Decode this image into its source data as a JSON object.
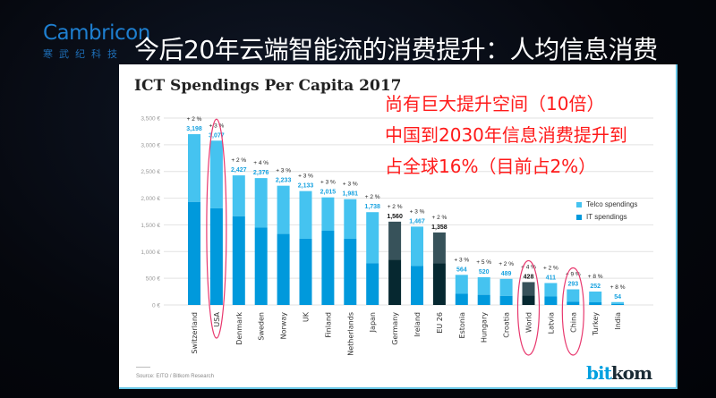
{
  "logo": {
    "en": "Cambricon",
    "cn": "寒武纪科技"
  },
  "title": "今后20年云端智能流的消费提升：人均信息消费",
  "annotations": [
    "尚有巨大提升空间（10倍）",
    "中国到2030年信息消费提升到",
    "占全球16%（目前占2%）"
  ],
  "source": "Source: EITO / Bitkom Research",
  "brand": {
    "part1": "bit",
    "part2": "kom"
  },
  "colors": {
    "telco": "#45c3f0",
    "it": "#0099dc",
    "telco_dark": "#37525a",
    "it_dark": "#062830",
    "highlight": "#e8386e",
    "label_blue": "#1aa3e0"
  },
  "chart_data": {
    "type": "bar",
    "stacked": true,
    "title": "ICT Spendings Per Capita 2017",
    "ylim": [
      0,
      3500
    ],
    "yticks": [
      "0 €",
      "500 €",
      "1,000 €",
      "1,500 €",
      "2,000 €",
      "2,500 €",
      "3,000 €",
      "3,500 €"
    ],
    "grid": true,
    "legend_position": "right",
    "categories": [
      "Switzerland",
      "USA",
      "Denmark",
      "Sweden",
      "Norway",
      "UK",
      "Finland",
      "Netherlands",
      "Japan",
      "Germany",
      "Ireland",
      "EU 26",
      "Estonia",
      "Hungary",
      "Croatia",
      "World",
      "Latvia",
      "China",
      "Turkey",
      "India"
    ],
    "totals": [
      3198,
      3077,
      2427,
      2376,
      2233,
      2133,
      2015,
      1981,
      1738,
      1560,
      1467,
      1358,
      564,
      520,
      489,
      428,
      411,
      293,
      252,
      54
    ],
    "total_labels": [
      "3,198",
      "3,077",
      "2,427",
      "2,376",
      "2,233",
      "2,133",
      "2,015",
      "1,981",
      "1,738",
      "1,560",
      "1,467",
      "1,358",
      "564",
      "520",
      "489",
      "428",
      "411",
      "293",
      "252",
      "54"
    ],
    "growth": [
      "+ 2 %",
      "+ 3 %",
      "+ 2 %",
      "+ 4 %",
      "+ 3 %",
      "+ 3 %",
      "+ 3 %",
      "+ 3 %",
      "+ 2 %",
      "+ 2 %",
      "+ 3 %",
      "+ 2 %",
      "+ 3 %",
      "+ 5 %",
      "+ 2 %",
      "+ 4 %",
      "+ 2 %",
      "+ 9 %",
      "+ 8 %",
      "+ 8 %"
    ],
    "series": [
      {
        "name": "IT spendings",
        "values": [
          1930,
          1810,
          1660,
          1450,
          1330,
          1240,
          1390,
          1240,
          780,
          850,
          730,
          780,
          210,
          190,
          170,
          180,
          160,
          60,
          50,
          20
        ]
      },
      {
        "name": "Telco spendings",
        "values": [
          1268,
          1267,
          767,
          926,
          903,
          893,
          625,
          741,
          958,
          710,
          737,
          578,
          354,
          330,
          319,
          248,
          251,
          233,
          202,
          34
        ]
      }
    ],
    "dark_categories": [
      "Germany",
      "EU 26",
      "World"
    ],
    "highlighted": [
      "USA",
      "World",
      "China"
    ]
  }
}
